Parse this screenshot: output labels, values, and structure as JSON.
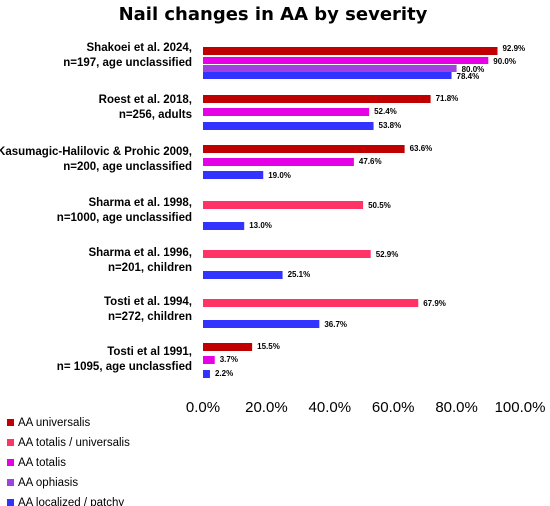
{
  "chart_data": {
    "type": "bar",
    "orientation": "horizontal",
    "title": "Nail changes in AA by severity",
    "xlabel": "",
    "ylabel": "",
    "xlim": [
      0,
      100
    ],
    "x_ticks": [
      "0.0%",
      "20.0%",
      "40.0%",
      "60.0%",
      "80.0%",
      "100.0%"
    ],
    "grid": false,
    "legend_position": "bottom-left",
    "categories": [
      {
        "line1": "Shakoei et al. 2024,",
        "line2": "n=197, age unclassified"
      },
      {
        "line1": "Roest et al. 2018,",
        "line2": "n=256,  adults"
      },
      {
        "line1": "Kasumagic-Halilovic & Prohic 2009,",
        "line2": "n=200, age unclassified"
      },
      {
        "line1": "Sharma et al. 1998,",
        "line2": "n=1000, age unclassified"
      },
      {
        "line1": "Sharma et al. 1996,",
        "line2": "n=201, children"
      },
      {
        "line1": "Tosti et al. 1994,",
        "line2": "n=272, children"
      },
      {
        "line1": "Tosti et al 1991,",
        "line2": "n= 1095, age unclassfied"
      }
    ],
    "series": [
      {
        "name": "AA universalis",
        "color": "#c00000"
      },
      {
        "name": "AA totalis / universalis",
        "color": "#ff3366"
      },
      {
        "name": "AA totalis",
        "color": "#e600e6"
      },
      {
        "name": "AA ophiasis",
        "color": "#a040e0"
      },
      {
        "name": "AA localized / patchy",
        "color": "#3333ff"
      }
    ],
    "bars": [
      [
        {
          "series": 0,
          "value": 92.9,
          "label": "92.9%"
        },
        {
          "series": 2,
          "value": 90.0,
          "label": "90.0%"
        },
        {
          "series": 3,
          "value": 80.0,
          "label": "80.0%"
        },
        {
          "series": 4,
          "value": 78.4,
          "label": "78.4%"
        }
      ],
      [
        {
          "series": 0,
          "value": 71.8,
          "label": "71.8%"
        },
        {
          "series": 2,
          "value": 52.4,
          "label": "52.4%"
        },
        {
          "series": 4,
          "value": 53.8,
          "label": "53.8%"
        }
      ],
      [
        {
          "series": 0,
          "value": 63.6,
          "label": "63.6%"
        },
        {
          "series": 2,
          "value": 47.6,
          "label": "47.6%"
        },
        {
          "series": 4,
          "value": 19.0,
          "label": "19.0%"
        }
      ],
      [
        {
          "series": 1,
          "value": 50.5,
          "label": "50.5%"
        },
        {
          "series": 4,
          "value": 13.0,
          "label": "13.0%"
        }
      ],
      [
        {
          "series": 1,
          "value": 52.9,
          "label": "52.9%"
        },
        {
          "series": 4,
          "value": 25.1,
          "label": "25.1%"
        }
      ],
      [
        {
          "series": 1,
          "value": 67.9,
          "label": "67.9%"
        },
        {
          "series": 4,
          "value": 36.7,
          "label": "36.7%"
        }
      ],
      [
        {
          "series": 0,
          "value": 15.5,
          "label": "15.5%"
        },
        {
          "series": 2,
          "value": 3.7,
          "label": "3.7%"
        },
        {
          "series": 4,
          "value": 2.2,
          "label": "2.2%"
        }
      ]
    ]
  }
}
